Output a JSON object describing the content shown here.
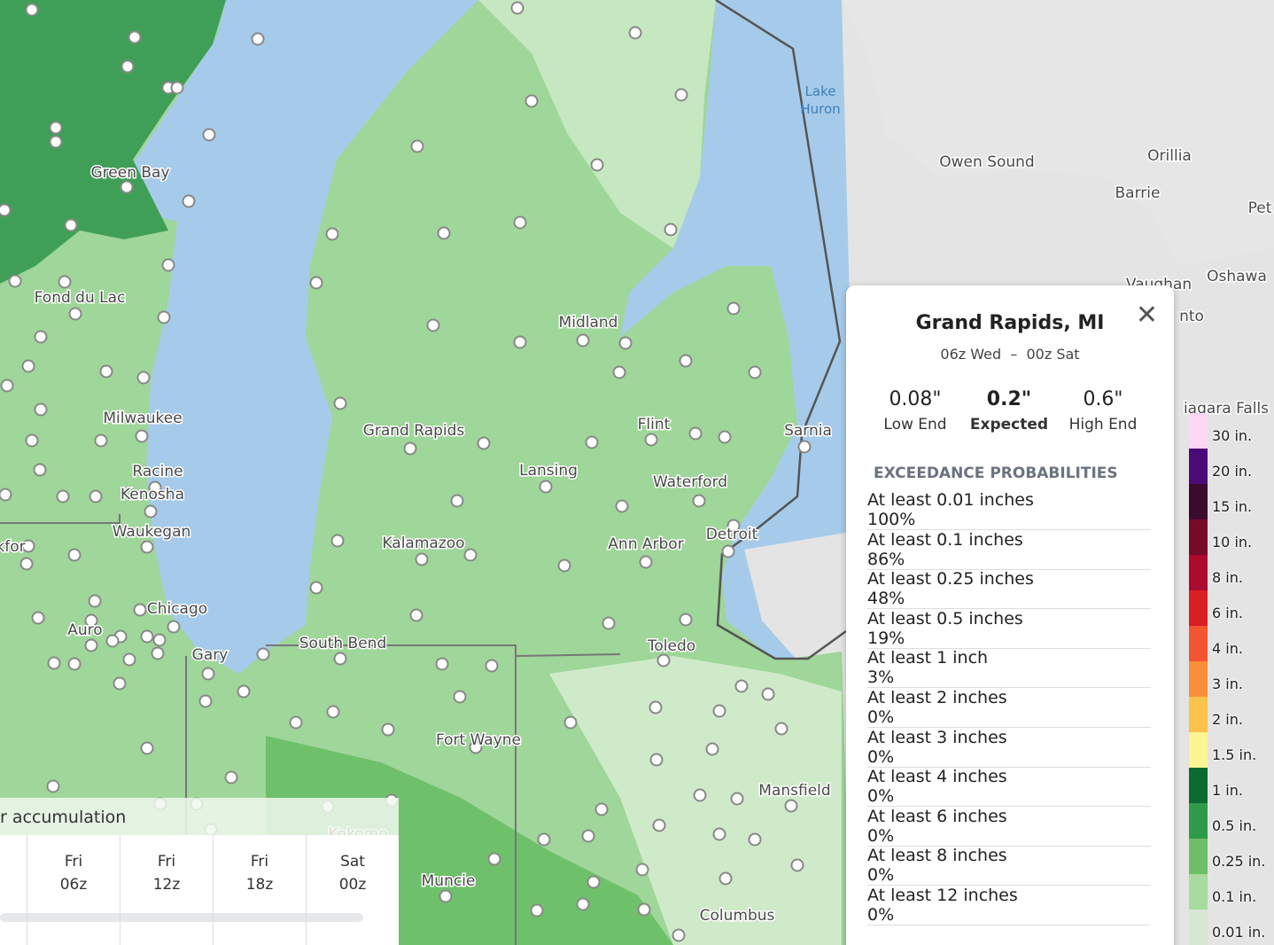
{
  "map": {
    "places": [
      "Green Bay",
      "Fond du Lac",
      "Milwaukee",
      "Racine",
      "Kenosha",
      "Waukegan",
      "Chicago",
      "Auro",
      "Gary",
      "South Bend",
      "Grand Rapids",
      "Midland",
      "Flint",
      "Lansing",
      "Waterford",
      "Kalamazoo",
      "Ann Arbor",
      "Detroit",
      "Sarnia",
      "Toledo",
      "Fort Wayne",
      "Mansfield",
      "Muncie",
      "Columbus",
      "Kokomo",
      "Owen Sound",
      "Orillia",
      "Barrie",
      "Pet",
      "Vaughan",
      "Oshawa",
      "nto",
      "iagara Falls",
      "kfor"
    ],
    "water": [
      "Lake",
      "Huron"
    ]
  },
  "popup": {
    "title": "Grand Rapids, MI",
    "period": "06z Wed  –  00z Sat",
    "stats": [
      {
        "value": "0.08\"",
        "label": "Low End"
      },
      {
        "value": "0.2\"",
        "label": "Expected"
      },
      {
        "value": "0.6\"",
        "label": "High End"
      }
    ],
    "section": "EXCEEDANCE PROBABILITIES",
    "rows": [
      [
        "At least 0.01 inches",
        "100%"
      ],
      [
        "At least 0.1 inches",
        "86%"
      ],
      [
        "At least 0.25 inches",
        "48%"
      ],
      [
        "At least 0.5 inches",
        "19%"
      ],
      [
        "At least 1 inch",
        "3%"
      ],
      [
        "At least 2 inches",
        "0%"
      ],
      [
        "At least 3 inches",
        "0%"
      ],
      [
        "At least 4 inches",
        "0%"
      ],
      [
        "At least 6 inches",
        "0%"
      ],
      [
        "At least 8 inches",
        "0%"
      ],
      [
        "At least 12 inches",
        "0%"
      ]
    ]
  },
  "legend": [
    {
      "label": "30 in.",
      "color": "#fdd7f3"
    },
    {
      "label": "20 in.",
      "color": "#4b0a78"
    },
    {
      "label": "15 in.",
      "color": "#3b0a2f"
    },
    {
      "label": "10 in.",
      "color": "#760a27"
    },
    {
      "label": "8 in.",
      "color": "#ad0a30"
    },
    {
      "label": "6 in.",
      "color": "#d81f24"
    },
    {
      "label": "4 in.",
      "color": "#f35530"
    },
    {
      "label": "3 in.",
      "color": "#f98f3a"
    },
    {
      "label": "2 in.",
      "color": "#fcc34b"
    },
    {
      "label": "1.5 in.",
      "color": "#fbf593"
    },
    {
      "label": "1 in.",
      "color": "#0b6a30"
    },
    {
      "label": "0.5 in.",
      "color": "#2f9a4a"
    },
    {
      "label": "0.25 in.",
      "color": "#6cbf68"
    },
    {
      "label": "0.1 in.",
      "color": "#a7dc9e"
    },
    {
      "label": "0.01 in.",
      "color": "#d6e8d2"
    }
  ],
  "timeline": {
    "header": "r accumulation",
    "slots": [
      [
        "Fri",
        "06z"
      ],
      [
        "Fri",
        "12z"
      ],
      [
        "Fri",
        "18z"
      ],
      [
        "Sat",
        "00z"
      ]
    ]
  }
}
